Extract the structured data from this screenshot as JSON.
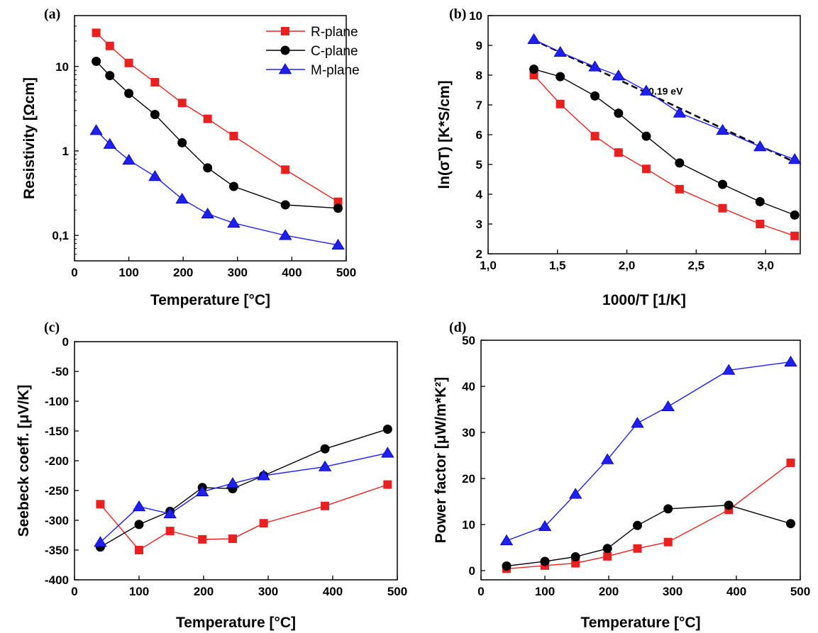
{
  "colors": {
    "R-plane": "#e82020",
    "C-plane": "#000000",
    "M-plane": "#2020ee",
    "fit": "#000000"
  },
  "legend": [
    {
      "name": "R-plane",
      "marker": "square"
    },
    {
      "name": "C-plane",
      "marker": "circle"
    },
    {
      "name": "M-plane",
      "marker": "triangle"
    }
  ],
  "chart_data": [
    {
      "panel": "(a)",
      "type": "line",
      "xlabel": "Temperature [°C]",
      "ylabel": "Resistivity [Ωcm]",
      "yscale": "log",
      "xlim": [
        0,
        500
      ],
      "ylim": [
        0.05,
        40
      ],
      "xticks": [
        "0",
        "100",
        "200",
        "300",
        "400",
        "500"
      ],
      "yticks": [
        {
          "value": 0.1,
          "label": "0,1"
        },
        {
          "value": 1,
          "label": "1"
        },
        {
          "value": 10,
          "label": "10"
        }
      ],
      "legend_position": "top-right",
      "series": [
        {
          "name": "R-plane",
          "marker": "square",
          "x": [
            40,
            65,
            100,
            148,
            198,
            245,
            293,
            388,
            485
          ],
          "y": [
            25,
            17.5,
            11,
            6.5,
            3.7,
            2.4,
            1.5,
            0.6,
            0.25
          ]
        },
        {
          "name": "C-plane",
          "marker": "circle",
          "x": [
            40,
            65,
            100,
            148,
            198,
            245,
            293,
            388,
            485
          ],
          "y": [
            11.5,
            7.8,
            4.8,
            2.7,
            1.25,
            0.63,
            0.38,
            0.23,
            0.21
          ]
        },
        {
          "name": "M-plane",
          "marker": "triangle",
          "x": [
            40,
            65,
            100,
            148,
            198,
            245,
            293,
            388,
            485
          ],
          "y": [
            1.75,
            1.2,
            0.78,
            0.5,
            0.27,
            0.18,
            0.14,
            0.1,
            0.077
          ]
        }
      ]
    },
    {
      "panel": "(b)",
      "type": "line",
      "xlabel": "1000/T [1/K]",
      "ylabel": "ln(σT) [K*S/cm]",
      "yscale": "linear",
      "xlim": [
        1.0,
        3.25
      ],
      "ylim": [
        2,
        10
      ],
      "xticks": [
        "1,0",
        "1,5",
        "2,0",
        "2,5",
        "3,0"
      ],
      "yticks": [
        "2",
        "3",
        "4",
        "5",
        "6",
        "7",
        "8",
        "9",
        "10"
      ],
      "annotation": "0.19 eV",
      "fit_line": {
        "x": [
          1.32,
          3.2
        ],
        "y": [
          9.2,
          5.1
        ]
      },
      "series": [
        {
          "name": "R-plane",
          "marker": "square",
          "x": [
            1.33,
            1.52,
            1.77,
            1.94,
            2.14,
            2.38,
            2.69,
            2.96,
            3.21
          ],
          "y": [
            8.0,
            7.03,
            5.95,
            5.4,
            4.85,
            4.17,
            3.53,
            3.0,
            2.6
          ]
        },
        {
          "name": "C-plane",
          "marker": "circle",
          "x": [
            1.33,
            1.52,
            1.77,
            1.94,
            2.14,
            2.38,
            2.69,
            2.96,
            3.21
          ],
          "y": [
            8.2,
            7.95,
            7.3,
            6.72,
            5.95,
            5.05,
            4.33,
            3.75,
            3.3
          ]
        },
        {
          "name": "M-plane",
          "marker": "triangle",
          "x": [
            1.33,
            1.52,
            1.77,
            1.94,
            2.14,
            2.38,
            2.69,
            2.96,
            3.21
          ],
          "y": [
            9.2,
            8.77,
            8.28,
            7.98,
            7.47,
            6.73,
            6.15,
            5.6,
            5.17
          ]
        }
      ]
    },
    {
      "panel": "(c)",
      "type": "line",
      "xlabel": "Temperature [°C]",
      "ylabel": "Seebeck coeff. [μV/K]",
      "yscale": "linear",
      "xlim": [
        0,
        500
      ],
      "ylim": [
        -400,
        0
      ],
      "xticks": [
        "0",
        "100",
        "200",
        "300",
        "400",
        "500"
      ],
      "yticks": [
        "-400",
        "-350",
        "-300",
        "-250",
        "-200",
        "-150",
        "-100",
        "-50",
        "0"
      ],
      "series": [
        {
          "name": "R-plane",
          "marker": "square",
          "x": [
            40,
            100,
            148,
            198,
            245,
            293,
            388,
            485
          ],
          "y": [
            -273,
            -350,
            -318,
            -332,
            -331,
            -305,
            -276,
            -240
          ]
        },
        {
          "name": "C-plane",
          "marker": "circle",
          "x": [
            40,
            100,
            148,
            198,
            245,
            293,
            388,
            485
          ],
          "y": [
            -345,
            -307,
            -285,
            -245,
            -247,
            -225,
            -180,
            -147
          ]
        },
        {
          "name": "M-plane",
          "marker": "triangle",
          "x": [
            40,
            100,
            148,
            198,
            245,
            293,
            388,
            485
          ],
          "y": [
            -337,
            -277,
            -289,
            -252,
            -238,
            -225,
            -210,
            -187
          ]
        }
      ]
    },
    {
      "panel": "(d)",
      "type": "line",
      "xlabel": "Temperature [°C]",
      "ylabel": "Power factor [μW/m*K²]",
      "yscale": "linear",
      "xlim": [
        0,
        500
      ],
      "ylim": [
        -2,
        50
      ],
      "xticks": [
        "0",
        "100",
        "200",
        "300",
        "400",
        "500"
      ],
      "yticks": [
        "0",
        "10",
        "20",
        "30",
        "40",
        "50"
      ],
      "series": [
        {
          "name": "R-plane",
          "marker": "square",
          "x": [
            40,
            100,
            148,
            198,
            245,
            293,
            388,
            485
          ],
          "y": [
            0.4,
            1.1,
            1.6,
            3.1,
            4.8,
            6.2,
            13.2,
            23.4
          ]
        },
        {
          "name": "C-plane",
          "marker": "circle",
          "x": [
            40,
            100,
            148,
            198,
            245,
            293,
            388,
            485
          ],
          "y": [
            1.0,
            2.0,
            3.0,
            4.8,
            9.8,
            13.4,
            14.2,
            10.2
          ]
        },
        {
          "name": "M-plane",
          "marker": "triangle",
          "x": [
            40,
            100,
            148,
            198,
            245,
            293,
            388,
            485
          ],
          "y": [
            6.5,
            9.6,
            16.6,
            24.1,
            32.0,
            35.6,
            43.5,
            45.3
          ]
        }
      ]
    }
  ]
}
